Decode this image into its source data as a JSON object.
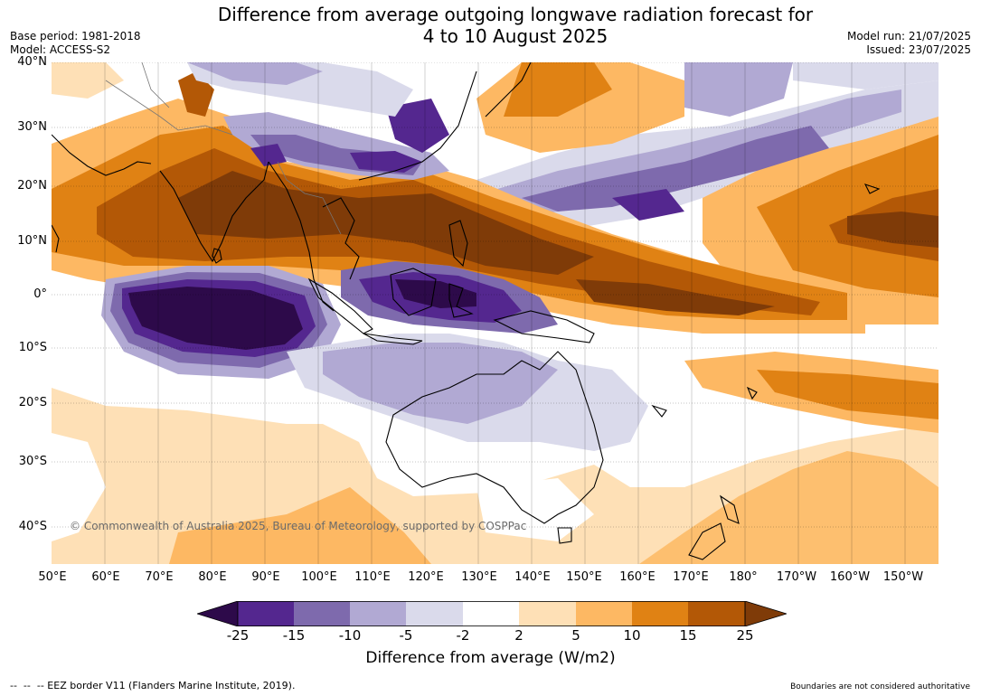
{
  "title": {
    "line1": "Difference from average outgoing longwave radiation forecast for",
    "line2": "4 to 10 August 2025"
  },
  "meta": {
    "base_period": "Base period: 1981-2018",
    "model": "Model: ACCESS-S2",
    "model_run": "Model run: 21/07/2025",
    "issued": "Issued: 23/07/2025"
  },
  "map": {
    "latitude_labels": [
      "40°N",
      "30°N",
      "20°N",
      "10°N",
      "0°",
      "10°S",
      "20°S",
      "30°S",
      "40°S"
    ],
    "longitude_labels": [
      "50°E",
      "60°E",
      "70°E",
      "80°E",
      "90°E",
      "100°E",
      "110°E",
      "120°E",
      "130°E",
      "140°E",
      "150°E",
      "160°E",
      "170°E",
      "180°",
      "170°W",
      "160°W",
      "150°W"
    ],
    "copyright": "© Commonwealth of Australia 2025, Bureau of Meteorology, supported by COSPPac"
  },
  "colorbar": {
    "ticks": [
      "-25",
      "-15",
      "-10",
      "-5",
      "-2",
      "2",
      "5",
      "10",
      "15",
      "25"
    ],
    "colors": [
      "#2d0a4a",
      "#54278f",
      "#7e6aad",
      "#b1a9d3",
      "#dadaeb",
      "#ffffff",
      "#fee0b6",
      "#fdb863",
      "#e08214",
      "#b35806",
      "#7f3b08"
    ],
    "label": "Difference from average (W/m2)"
  },
  "footer": {
    "eez_note": "--  --  -- EEZ border V11 (Flanders Marine Institute, 2019).",
    "boundaries_note": "Boundaries are not considered authoritative"
  }
}
